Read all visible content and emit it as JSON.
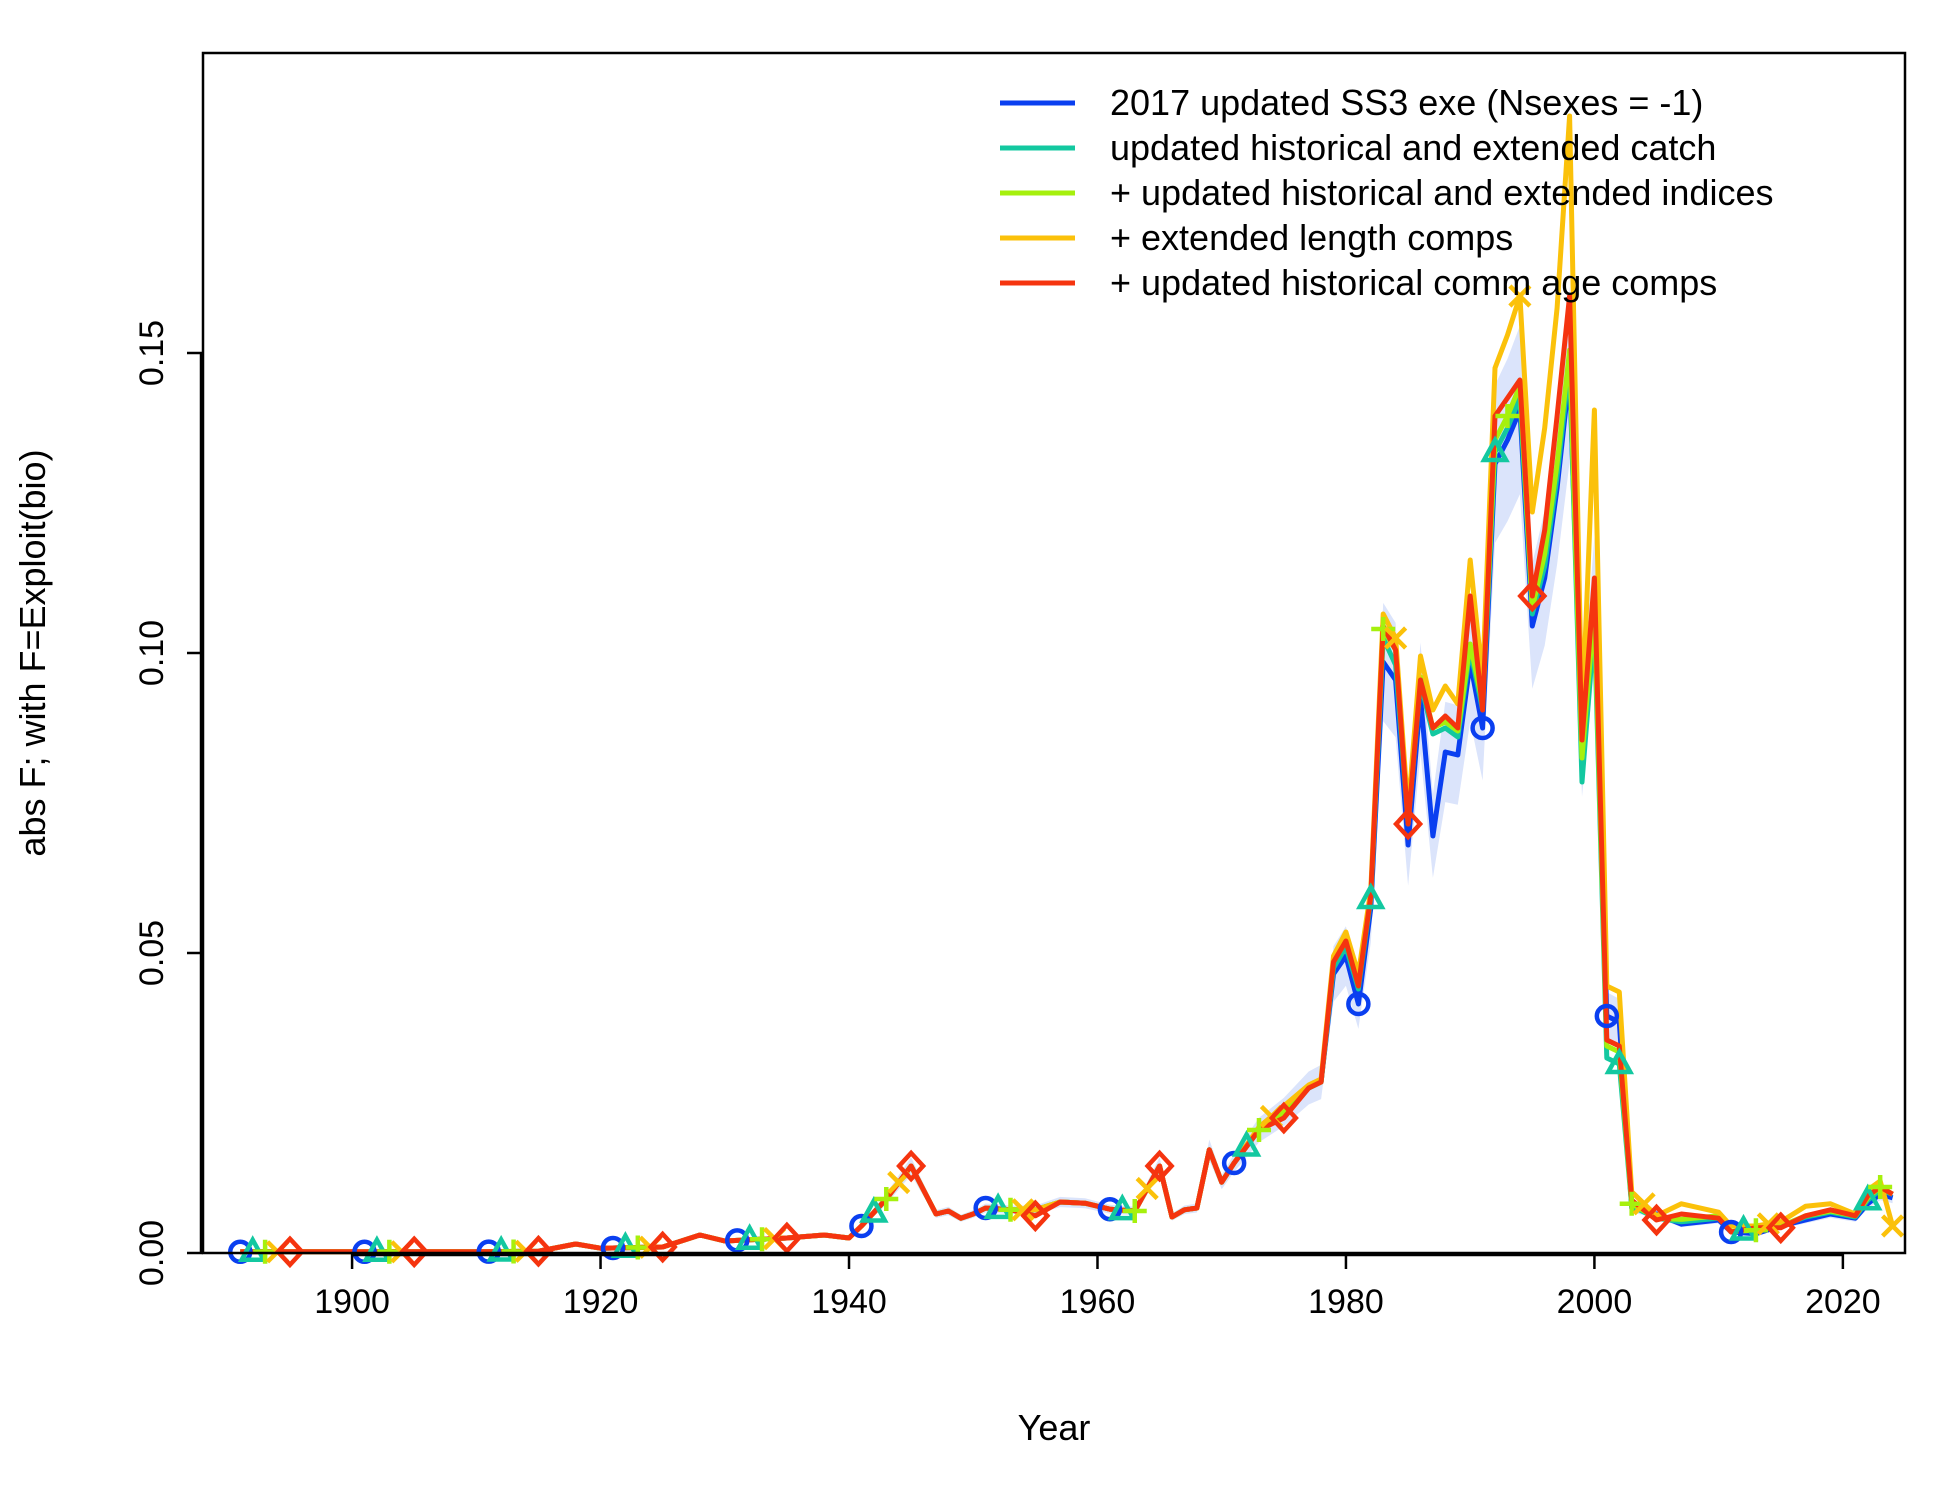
{
  "chart_data": {
    "type": "line",
    "title": "",
    "xlabel": "Year",
    "ylabel": "abs F; with F=Exploit(bio)",
    "xlim": [
      1888,
      2025
    ],
    "ylim": [
      0,
      0.2
    ],
    "x_ticks": [
      1900,
      1920,
      1940,
      1960,
      1980,
      2000,
      2020
    ],
    "y_ticks": [
      0.0,
      0.05,
      0.1,
      0.15
    ],
    "y_tick_labels": [
      "0.00",
      "0.05",
      "0.10",
      "0.15"
    ],
    "grid": false,
    "legend_position": "top-right",
    "uncertainty_band_color": "#dbe4fb",
    "x": [
      1891,
      1895,
      1900,
      1905,
      1910,
      1915,
      1918,
      1920,
      1925,
      1928,
      1930,
      1935,
      1938,
      1940,
      1941,
      1943,
      1945,
      1947,
      1948,
      1949,
      1950,
      1951,
      1953,
      1955,
      1957,
      1959,
      1961,
      1963,
      1965,
      1966,
      1967,
      1968,
      1969,
      1970,
      1971,
      1973,
      1975,
      1977,
      1978,
      1979,
      1980,
      1981,
      1982,
      1983,
      1984,
      1985,
      1986,
      1987,
      1988,
      1989,
      1990,
      1991,
      1992,
      1993,
      1994,
      1995,
      1996,
      1997,
      1998,
      1999,
      2000,
      2001,
      2002,
      2003,
      2005,
      2007,
      2010,
      2011,
      2013,
      2015,
      2017,
      2019,
      2021,
      2022,
      2023,
      2024
    ],
    "series": [
      {
        "name": "2017 updated SS3 exe (Nsexes = -1)",
        "color": "#0a3ff0",
        "marker": "circle",
        "marker_years": [
          1891,
          1901,
          1911,
          1921,
          1931,
          1941,
          1951,
          1961,
          1971,
          1981,
          1991,
          2001,
          2011
        ],
        "values": [
          0.0002,
          0.0002,
          0.0002,
          0.0002,
          0.0002,
          0.0003,
          0.0015,
          0.0008,
          0.001,
          0.003,
          0.002,
          0.0025,
          0.003,
          0.0025,
          0.0045,
          0.009,
          0.0145,
          0.0065,
          0.007,
          0.0058,
          0.0065,
          0.0075,
          0.0072,
          0.0072,
          0.0085,
          0.0083,
          0.0073,
          0.007,
          0.0145,
          0.006,
          0.0072,
          0.0075,
          0.0172,
          0.0118,
          0.015,
          0.0205,
          0.0235,
          0.0275,
          0.0285,
          0.0465,
          0.0495,
          0.0415,
          0.0575,
          0.0985,
          0.0955,
          0.068,
          0.0925,
          0.0695,
          0.0835,
          0.083,
          0.0985,
          0.0875,
          0.1315,
          0.1355,
          0.1405,
          0.1045,
          0.1125,
          0.1275,
          0.1465,
          0.0845,
          0.1085,
          0.0395,
          0.0385,
          0.0075,
          0.0065,
          0.0048,
          0.0055,
          0.0035,
          0.0032,
          0.0045,
          0.0055,
          0.0065,
          0.0058,
          0.0082,
          0.0098,
          0.0092
        ]
      },
      {
        "name": "updated historical and extended catch",
        "color": "#13c8a0",
        "marker": "triangle",
        "marker_years": [
          1892,
          1902,
          1912,
          1922,
          1932,
          1942,
          1952,
          1962,
          1972,
          1982,
          1992,
          2002,
          2012,
          2022
        ],
        "values": [
          0.0002,
          0.0002,
          0.0002,
          0.0002,
          0.0002,
          0.0003,
          0.0015,
          0.0008,
          0.001,
          0.003,
          0.002,
          0.0025,
          0.003,
          0.0025,
          0.0045,
          0.009,
          0.0145,
          0.0065,
          0.007,
          0.0058,
          0.0065,
          0.0075,
          0.0072,
          0.0072,
          0.0085,
          0.0083,
          0.0073,
          0.007,
          0.0145,
          0.006,
          0.0072,
          0.0075,
          0.0172,
          0.0118,
          0.015,
          0.0205,
          0.0235,
          0.0275,
          0.0285,
          0.0475,
          0.051,
          0.044,
          0.059,
          0.1025,
          0.098,
          0.0715,
          0.095,
          0.0865,
          0.0875,
          0.086,
          0.1005,
          0.0905,
          0.1335,
          0.1375,
          0.1425,
          0.1065,
          0.1145,
          0.1295,
          0.1485,
          0.0785,
          0.1045,
          0.0325,
          0.0315,
          0.0078,
          0.0058,
          0.0052,
          0.0058,
          0.0035,
          0.004,
          0.0045,
          0.006,
          0.0068,
          0.006,
          0.0088,
          0.0105,
          0.0098
        ]
      },
      {
        "name": "+ updated historical and extended indices",
        "color": "#a6f00d",
        "marker": "plus",
        "marker_years": [
          1893,
          1903,
          1913,
          1923,
          1933,
          1943,
          1953,
          1963,
          1973,
          1983,
          1993,
          2003,
          2013,
          2023
        ],
        "values": [
          0.0002,
          0.0002,
          0.0002,
          0.0002,
          0.0002,
          0.0003,
          0.0015,
          0.0008,
          0.001,
          0.003,
          0.002,
          0.0025,
          0.003,
          0.0025,
          0.0045,
          0.009,
          0.0145,
          0.0065,
          0.007,
          0.0058,
          0.0065,
          0.0075,
          0.0072,
          0.0072,
          0.0085,
          0.0083,
          0.0073,
          0.007,
          0.0145,
          0.006,
          0.0072,
          0.0075,
          0.0172,
          0.0118,
          0.015,
          0.0205,
          0.0235,
          0.0275,
          0.0285,
          0.0485,
          0.052,
          0.045,
          0.0595,
          0.104,
          0.1005,
          0.0725,
          0.096,
          0.0875,
          0.0885,
          0.087,
          0.1015,
          0.0915,
          0.1355,
          0.1395,
          0.1445,
          0.1075,
          0.1165,
          0.1315,
          0.1505,
          0.0825,
          0.1075,
          0.0345,
          0.0335,
          0.0082,
          0.0058,
          0.0056,
          0.0062,
          0.0036,
          0.0038,
          0.0045,
          0.0062,
          0.007,
          0.0062,
          0.0092,
          0.011,
          0.0098
        ]
      },
      {
        "name": "+ extended length comps",
        "color": "#fbc10a",
        "marker": "cross",
        "marker_years": [
          1894,
          1904,
          1914,
          1924,
          1934,
          1944,
          1954,
          1964,
          1974,
          1984,
          1994,
          2004,
          2014,
          2024
        ],
        "values": [
          0.0002,
          0.0002,
          0.0002,
          0.0002,
          0.0002,
          0.0003,
          0.0015,
          0.0008,
          0.001,
          0.003,
          0.002,
          0.0025,
          0.003,
          0.0025,
          0.0045,
          0.009,
          0.0145,
          0.0065,
          0.007,
          0.0058,
          0.0065,
          0.0075,
          0.0072,
          0.0072,
          0.0085,
          0.0083,
          0.0073,
          0.007,
          0.0145,
          0.006,
          0.0072,
          0.0075,
          0.0172,
          0.0118,
          0.015,
          0.021,
          0.0245,
          0.028,
          0.029,
          0.0495,
          0.0535,
          0.0465,
          0.0605,
          0.1065,
          0.1025,
          0.0735,
          0.0995,
          0.0905,
          0.0945,
          0.0915,
          0.1155,
          0.0955,
          0.1475,
          0.153,
          0.1595,
          0.1235,
          0.1375,
          0.1575,
          0.1895,
          0.0885,
          0.1405,
          0.0445,
          0.0435,
          0.0102,
          0.0062,
          0.0082,
          0.0068,
          0.0045,
          0.0045,
          0.0052,
          0.0078,
          0.0082,
          0.0065,
          0.0105,
          0.012,
          0.0045
        ]
      },
      {
        "name": "+ updated historical comm age comps",
        "color": "#f5340f",
        "marker": "diamond",
        "marker_years": [
          1895,
          1905,
          1915,
          1925,
          1935,
          1945,
          1955,
          1965,
          1975,
          1985,
          1995,
          2005,
          2015
        ],
        "values": [
          0.0002,
          0.0002,
          0.0002,
          0.0002,
          0.0002,
          0.0003,
          0.0015,
          0.0008,
          0.001,
          0.003,
          0.002,
          0.0025,
          0.003,
          0.0025,
          0.0045,
          0.009,
          0.0145,
          0.0065,
          0.007,
          0.0058,
          0.0065,
          0.0075,
          0.0072,
          0.0062,
          0.0085,
          0.0083,
          0.0073,
          0.007,
          0.0145,
          0.006,
          0.0072,
          0.0075,
          0.0172,
          0.0118,
          0.015,
          0.0205,
          0.0225,
          0.0275,
          0.0285,
          0.0485,
          0.052,
          0.0445,
          0.0595,
          0.1045,
          0.1005,
          0.0715,
          0.0955,
          0.0875,
          0.0895,
          0.0875,
          0.1095,
          0.0905,
          0.1395,
          0.1425,
          0.1455,
          0.1095,
          0.1205,
          0.1395,
          0.1595,
          0.0855,
          0.1125,
          0.0355,
          0.0345,
          0.0088,
          0.0055,
          0.0065,
          0.0058,
          0.0035,
          0.0042,
          0.0042,
          0.0062,
          0.0072,
          0.0062,
          0.0095,
          0.011,
          0.0098
        ]
      }
    ]
  }
}
